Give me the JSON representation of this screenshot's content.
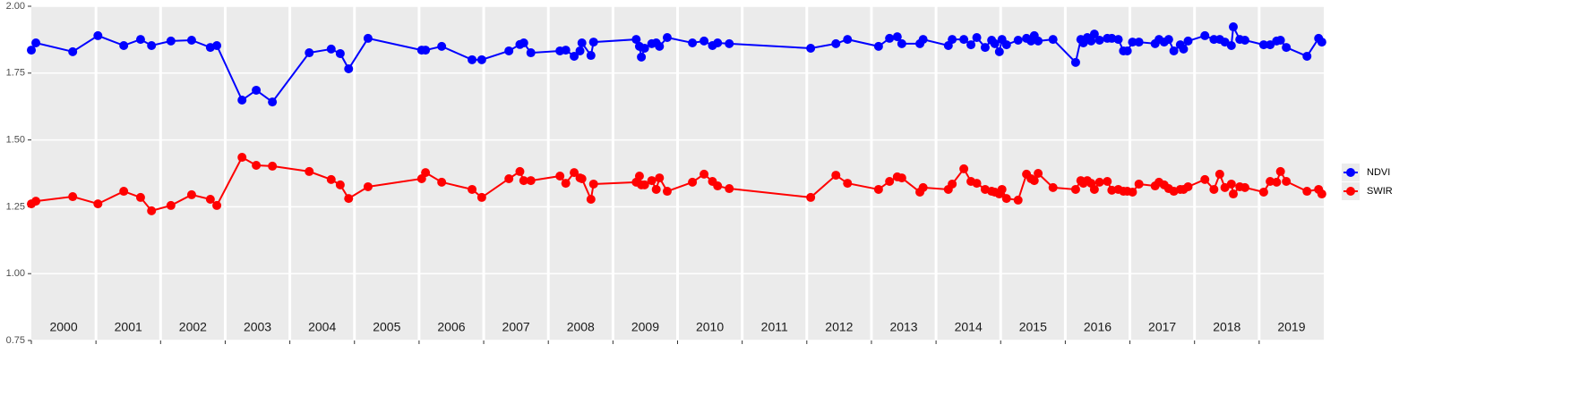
{
  "chart_data": {
    "type": "line",
    "years": [
      2000,
      2001,
      2002,
      2003,
      2004,
      2005,
      2006,
      2007,
      2008,
      2009,
      2010,
      2011,
      2012,
      2013,
      2014,
      2015,
      2016,
      2017,
      2018,
      2019
    ],
    "x": [
      2000.0,
      2000.07,
      2000.64,
      2001.03,
      2001.43,
      2001.69,
      2001.86,
      2002.16,
      2002.48,
      2002.77,
      2002.87,
      2003.26,
      2003.48,
      2003.73,
      2004.3,
      2004.64,
      2004.78,
      2004.91,
      2005.21,
      2006.04,
      2006.1,
      2006.35,
      2006.82,
      2006.97,
      2007.39,
      2007.56,
      2007.62,
      2007.73,
      2008.18,
      2008.27,
      2008.4,
      2008.49,
      2008.52,
      2008.66,
      2008.7,
      2009.36,
      2009.41,
      2009.44,
      2009.49,
      2009.6,
      2009.67,
      2009.72,
      2009.84,
      2010.23,
      2010.41,
      2010.54,
      2010.62,
      2010.8,
      2012.06,
      2012.45,
      2012.63,
      2013.11,
      2013.28,
      2013.4,
      2013.47,
      2013.75,
      2013.8,
      2014.19,
      2014.25,
      2014.43,
      2014.54,
      2014.63,
      2014.76,
      2014.86,
      2014.91,
      2014.98,
      2015.02,
      2015.09,
      2015.27,
      2015.4,
      2015.47,
      2015.52,
      2015.58,
      2015.81,
      2016.16,
      2016.24,
      2016.28,
      2016.34,
      2016.4,
      2016.45,
      2016.53,
      2016.65,
      2016.72,
      2016.82,
      2016.9,
      2016.96,
      2017.04,
      2017.14,
      2017.39,
      2017.45,
      2017.53,
      2017.6,
      2017.68,
      2017.78,
      2017.83,
      2017.9,
      2018.16,
      2018.3,
      2018.39,
      2018.47,
      2018.57,
      2018.6,
      2018.7,
      2018.78,
      2019.07,
      2019.17,
      2019.27,
      2019.33,
      2019.42,
      2019.74,
      2019.92,
      2019.97
    ],
    "series": [
      {
        "name": "NDVI",
        "color": "#0000ff",
        "values": [
          1.836,
          1.863,
          1.83,
          1.89,
          1.853,
          1.876,
          1.853,
          1.87,
          1.873,
          1.846,
          1.853,
          1.649,
          1.686,
          1.642,
          1.826,
          1.84,
          1.823,
          1.766,
          1.88,
          1.836,
          1.836,
          1.85,
          1.8,
          1.8,
          1.833,
          1.857,
          1.863,
          1.826,
          1.833,
          1.836,
          1.813,
          1.833,
          1.863,
          1.816,
          1.866,
          1.876,
          1.85,
          1.81,
          1.843,
          1.86,
          1.863,
          1.85,
          1.883,
          1.863,
          1.87,
          1.853,
          1.863,
          1.86,
          1.843,
          1.86,
          1.876,
          1.85,
          1.88,
          1.886,
          1.86,
          1.86,
          1.876,
          1.853,
          1.876,
          1.876,
          1.856,
          1.883,
          1.846,
          1.873,
          1.86,
          1.83,
          1.876,
          1.856,
          1.873,
          1.88,
          1.87,
          1.89,
          1.87,
          1.876,
          1.79,
          1.876,
          1.863,
          1.883,
          1.87,
          1.896,
          1.873,
          1.88,
          1.88,
          1.876,
          1.833,
          1.833,
          1.866,
          1.866,
          1.86,
          1.876,
          1.866,
          1.876,
          1.833,
          1.856,
          1.84,
          1.87,
          1.89,
          1.876,
          1.876,
          1.866,
          1.853,
          1.923,
          1.876,
          1.873,
          1.856,
          1.856,
          1.87,
          1.873,
          1.846,
          1.813,
          1.88,
          1.866
        ]
      },
      {
        "name": "SWIR",
        "color": "#ff0000",
        "values": [
          1.261,
          1.271,
          1.288,
          1.261,
          1.308,
          1.285,
          1.235,
          1.255,
          1.295,
          1.278,
          1.255,
          1.435,
          1.405,
          1.402,
          1.382,
          1.352,
          1.332,
          1.281,
          1.325,
          1.355,
          1.378,
          1.342,
          1.315,
          1.285,
          1.355,
          1.382,
          1.348,
          1.348,
          1.365,
          1.338,
          1.378,
          1.358,
          1.355,
          1.278,
          1.335,
          1.342,
          1.365,
          1.332,
          1.332,
          1.348,
          1.315,
          1.358,
          1.308,
          1.342,
          1.372,
          1.345,
          1.328,
          1.318,
          1.285,
          1.368,
          1.338,
          1.315,
          1.345,
          1.362,
          1.358,
          1.305,
          1.322,
          1.315,
          1.335,
          1.392,
          1.345,
          1.338,
          1.315,
          1.308,
          1.305,
          1.298,
          1.315,
          1.281,
          1.275,
          1.372,
          1.355,
          1.348,
          1.375,
          1.322,
          1.315,
          1.348,
          1.338,
          1.348,
          1.338,
          1.315,
          1.342,
          1.345,
          1.312,
          1.315,
          1.308,
          1.308,
          1.305,
          1.335,
          1.328,
          1.342,
          1.332,
          1.318,
          1.308,
          1.315,
          1.315,
          1.325,
          1.352,
          1.315,
          1.372,
          1.322,
          1.335,
          1.298,
          1.325,
          1.322,
          1.305,
          1.345,
          1.342,
          1.382,
          1.345,
          1.308,
          1.315,
          1.298
        ]
      }
    ],
    "xlim": [
      2000,
      2020
    ],
    "ylim": [
      0.75,
      2.0
    ],
    "yticks": [
      0.75,
      {
        "value": 1,
        "label": "1.00"
      },
      1.25,
      {
        "value": 1.5,
        "label": "1.50"
      },
      1.75,
      {
        "value": 2,
        "label": "2.00"
      }
    ],
    "grid": true,
    "legend": "right"
  }
}
